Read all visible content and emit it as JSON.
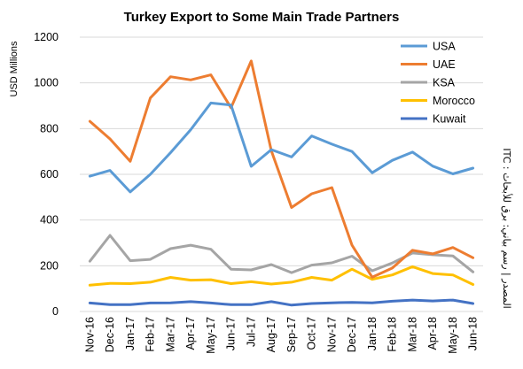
{
  "chart_data": {
    "type": "line",
    "title": "Turkey Export to Some Main Trade Partners",
    "ylabel": "USD Millions",
    "xlabel": "",
    "ylim": [
      0,
      1200
    ],
    "yticks": [
      0,
      200,
      400,
      600,
      800,
      1000,
      1200
    ],
    "grid": true,
    "legend_position": "top-right",
    "side_note": "ITC : المصدر | رسم بياني: برق للأبحاث",
    "categories": [
      "Nov-16",
      "Dec-16",
      "Jan-17",
      "Feb-17",
      "Mar-17",
      "Apr-17",
      "May-17",
      "Jun-17",
      "Jul-17",
      "Aug-17",
      "Sep-17",
      "Oct-17",
      "Nov-17",
      "Dec-17",
      "Jan-18",
      "Feb-18",
      "Mar-18",
      "Apr-18",
      "May-18",
      "Jun-18"
    ],
    "series": [
      {
        "name": "USA",
        "color": "#5b9bd5",
        "values": [
          592,
          617,
          523,
          600,
          695,
          795,
          912,
          903,
          635,
          708,
          676,
          768,
          732,
          700,
          607,
          661,
          697,
          636,
          602,
          627
        ]
      },
      {
        "name": "UAE",
        "color": "#ed7d31",
        "values": [
          832,
          755,
          657,
          934,
          1027,
          1013,
          1035,
          891,
          1096,
          703,
          455,
          515,
          542,
          290,
          150,
          190,
          268,
          252,
          280,
          235
        ]
      },
      {
        "name": "KSA",
        "color": "#a5a5a5",
        "values": [
          220,
          333,
          222,
          228,
          275,
          290,
          272,
          185,
          182,
          205,
          170,
          203,
          213,
          242,
          178,
          212,
          256,
          248,
          243,
          173
        ]
      },
      {
        "name": "Morocco",
        "color": "#ffc000",
        "values": [
          115,
          123,
          122,
          128,
          149,
          137,
          139,
          122,
          130,
          120,
          128,
          149,
          137,
          185,
          141,
          160,
          196,
          166,
          160,
          118
        ]
      },
      {
        "name": "Kuwait",
        "color": "#4472c4",
        "values": [
          37,
          30,
          30,
          37,
          38,
          43,
          37,
          30,
          30,
          43,
          28,
          35,
          38,
          40,
          38,
          45,
          50,
          46,
          50,
          35
        ]
      }
    ]
  }
}
